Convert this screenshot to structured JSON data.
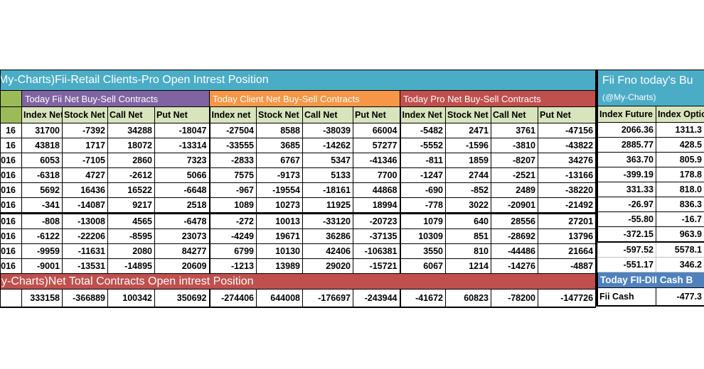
{
  "colors": {
    "teal": "#4BACC6",
    "purple": "#8064A2",
    "orange": "#F79646",
    "red": "#C0504D",
    "blue": "#4F81BD",
    "header_green": "#D8E4BC",
    "side_green": "#9BBB59"
  },
  "left_table": {
    "title": "My-Charts)Fii-Retail Clients-Pro Open Intrest Position",
    "sections": [
      {
        "label": "Today Fii Net Buy-Sell Contracts",
        "color": "#8064A2",
        "columns": [
          "Index Net",
          "Stock Net",
          "Call Net",
          "Put Net"
        ]
      },
      {
        "label": "Today Client Net Buy-Sell Contracts",
        "color": "#F79646",
        "columns": [
          "Index net",
          "Stock Net",
          "Call Net",
          "Put Net"
        ]
      },
      {
        "label": "Today Pro Net Buy-Sell Contracts",
        "color": "#C0504D",
        "columns": [
          "Index Net",
          "Stock Net",
          "Call Net",
          "Put Net"
        ]
      }
    ],
    "date_fragments": [
      "16",
      "16",
      "016",
      "016",
      "016",
      "016",
      "016",
      "016",
      "016",
      "016"
    ],
    "rows": [
      [
        "31700",
        "-7392",
        "34288",
        "-18047",
        "-27504",
        "8588",
        "-38039",
        "66004",
        "-5482",
        "2471",
        "3761",
        "-47156"
      ],
      [
        "43818",
        "1717",
        "18072",
        "-13314",
        "-33555",
        "3685",
        "-14262",
        "57277",
        "-5552",
        "-1596",
        "-3810",
        "-43822"
      ],
      [
        "6053",
        "-7105",
        "2860",
        "7323",
        "-2833",
        "6767",
        "5347",
        "-41346",
        "-811",
        "1859",
        "-8207",
        "34276"
      ],
      [
        "-6318",
        "4727",
        "-2612",
        "5066",
        "7575",
        "-9173",
        "5133",
        "7700",
        "-1247",
        "2744",
        "-2521",
        "-13166"
      ],
      [
        "5692",
        "16436",
        "16522",
        "-6648",
        "-967",
        "-19554",
        "-18161",
        "44868",
        "-690",
        "-852",
        "2489",
        "-38220"
      ],
      [
        "-341",
        "-14087",
        "9217",
        "2518",
        "1089",
        "10273",
        "11925",
        "18994",
        "-778",
        "3022",
        "-20901",
        "-21492"
      ],
      [
        "-808",
        "-13008",
        "4565",
        "-6478",
        "-272",
        "10013",
        "-33120",
        "-20723",
        "1079",
        "640",
        "28556",
        "27201"
      ],
      [
        "-6122",
        "-22206",
        "-8595",
        "23073",
        "-4249",
        "19671",
        "36286",
        "-37135",
        "10309",
        "851",
        "-28692",
        "13796"
      ],
      [
        "-9959",
        "-11631",
        "2080",
        "84277",
        "6799",
        "10130",
        "42406",
        "-106381",
        "3550",
        "810",
        "-44486",
        "21664"
      ],
      [
        "-9001",
        "-13531",
        "-14895",
        "20609",
        "-1213",
        "13989",
        "29020",
        "-15721",
        "6067",
        "1214",
        "-14276",
        "-4887"
      ]
    ],
    "total_band_label": "y-Charts)Net Total Contracts Open intrest Position",
    "totals": [
      "333158",
      "-366889",
      "100342",
      "350692",
      "-274406",
      "644008",
      "-176697",
      "-243944",
      "-41672",
      "60823",
      "-78200",
      "-147726"
    ]
  },
  "right_panel": {
    "title": "Fii Fno today's Bu",
    "subtitle": "(@My-Charts)",
    "columns": [
      "Index Future",
      "Index Optio"
    ],
    "rows": [
      [
        "2066.36",
        "1311.3"
      ],
      [
        "2885.77",
        "428.5"
      ],
      [
        "363.70",
        "805.9"
      ],
      [
        "-399.19",
        "178.8"
      ],
      [
        "331.33",
        "818.0"
      ],
      [
        "-26.97",
        "836.3"
      ],
      [
        "-55.80",
        "-16.7"
      ],
      [
        "-372.15",
        "963.9"
      ],
      [
        "-597.52",
        "5578.1"
      ],
      [
        "-551.17",
        "346.2"
      ]
    ],
    "cash_band_label": "Today FII-DII Cash B",
    "cash_row": {
      "label": "Fii Cash",
      "value": "-477.3"
    }
  }
}
